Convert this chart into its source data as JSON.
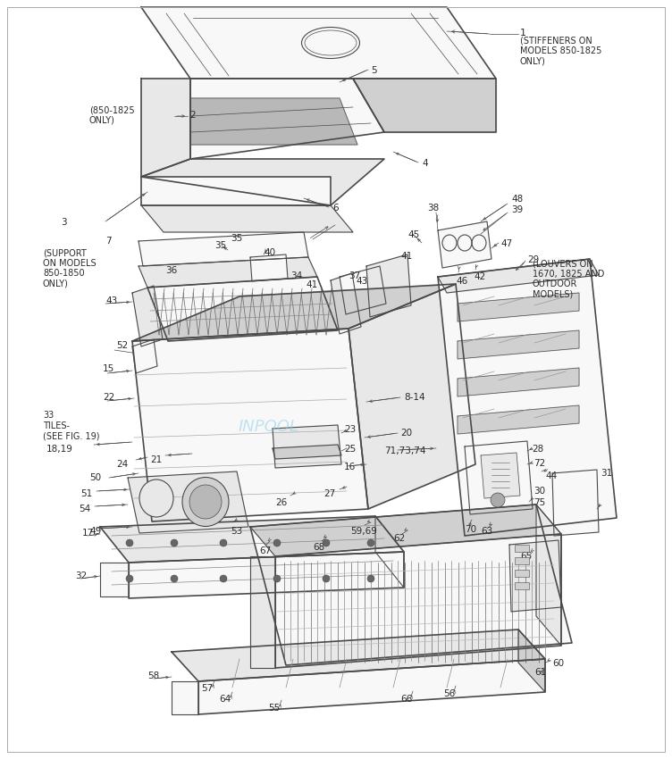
{
  "bg_color": "#ffffff",
  "line_color": "#4a4a4a",
  "text_color": "#2a2a2a",
  "watermark": "INPOOL",
  "watermark_color": "#87CEEB",
  "fig_width": 7.52,
  "fig_height": 8.5,
  "dpi": 100,
  "lw": 0.8,
  "lw_thin": 0.5,
  "lw_thick": 1.2,
  "gray_fill": "#e8e8e8",
  "gray_mid": "#d0d0d0",
  "gray_dark": "#b8b8b8",
  "white_fill": "#f8f8f8",
  "parts": {
    "1_note": "1\n(STIFFENERS ON\nMODELS 850-1825\nONLY)",
    "2_note": "(850-1825\nONLY)",
    "support_note": "(SUPPORT\nON MODELS\n850-1850\nONLY)",
    "33_note": "33\nTILES-\n(SEE FIG. 19)",
    "29_note": "29\n(LOUVERS ON\n1670, 1825 AND\nOUTDOOR\nMODELS)"
  }
}
